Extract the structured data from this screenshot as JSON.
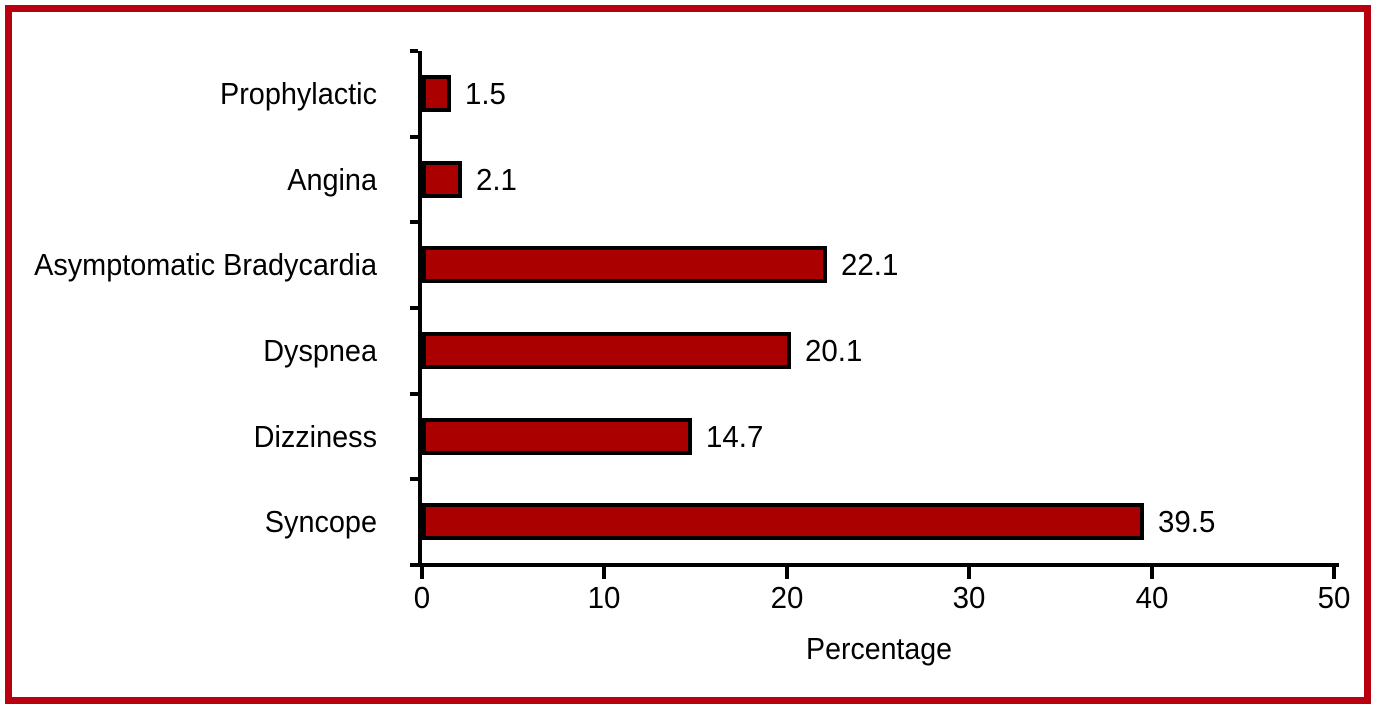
{
  "chart_data": {
    "type": "bar",
    "orientation": "horizontal",
    "title": "",
    "xlabel": "Percentage",
    "ylabel": "",
    "categories": [
      "Prophylactic",
      "Angina",
      "Asymptomatic Bradycardia",
      "Dyspnea",
      "Dizziness",
      "Syncope"
    ],
    "values": [
      1.5,
      2.1,
      22.1,
      20.1,
      14.7,
      39.5
    ],
    "value_labels": [
      "1.5",
      "2.1",
      "22.1",
      "20.1",
      "14.7",
      "39.5"
    ],
    "xlim": [
      0,
      50
    ],
    "x_ticks": [
      0,
      10,
      20,
      30,
      40,
      50
    ],
    "x_tick_labels": [
      "0",
      "10",
      "20",
      "30",
      "40",
      "50"
    ],
    "grid": false,
    "legend": "none",
    "bar_fill_color": "#AA0000",
    "bar_border_color": "#000000",
    "frame_color": "#B80011",
    "text_color": "#000000",
    "background_color": "#FFFFFF"
  }
}
